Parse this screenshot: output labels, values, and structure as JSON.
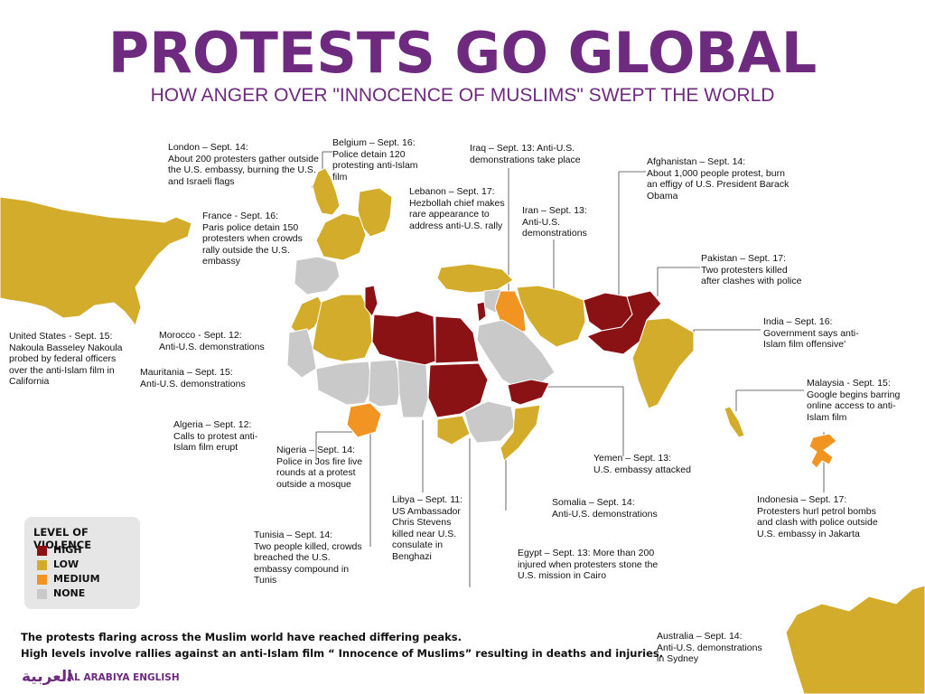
{
  "header": {
    "title": "PROTESTS GO GLOBAL",
    "subtitle": "HOW ANGER OVER \"INNOCENCE OF MUSLIMS\" SWEPT THE WORLD"
  },
  "colors": {
    "high": "#8b1214",
    "low": "#d4ac2b",
    "medium": "#f29422",
    "none": "#c9c9c9",
    "title": "#6e2a7e"
  },
  "legend": {
    "title": "LEVEL OF VIOLENCE",
    "items": [
      {
        "label": "HIGH",
        "color": "#8b1214"
      },
      {
        "label": "LOW",
        "color": "#d4ac2b"
      },
      {
        "label": "MEDIUM",
        "color": "#f29422"
      },
      {
        "label": "NONE",
        "color": "#c9c9c9"
      }
    ]
  },
  "regions": [
    {
      "name": "United States",
      "level": "low"
    },
    {
      "name": "United Kingdom",
      "level": "low"
    },
    {
      "name": "Belgium",
      "level": "low"
    },
    {
      "name": "France",
      "level": "low"
    },
    {
      "name": "Spain",
      "level": "none"
    },
    {
      "name": "Morocco",
      "level": "low"
    },
    {
      "name": "Algeria",
      "level": "low"
    },
    {
      "name": "Tunisia",
      "level": "high"
    },
    {
      "name": "Libya",
      "level": "high"
    },
    {
      "name": "Egypt",
      "level": "high"
    },
    {
      "name": "Sudan",
      "level": "high"
    },
    {
      "name": "Mauritania",
      "level": "none"
    },
    {
      "name": "Mali",
      "level": "none"
    },
    {
      "name": "Niger",
      "level": "none"
    },
    {
      "name": "Chad",
      "level": "none"
    },
    {
      "name": "Nigeria",
      "level": "medium"
    },
    {
      "name": "Turkey",
      "level": "low"
    },
    {
      "name": "Syria",
      "level": "none"
    },
    {
      "name": "Lebanon",
      "level": "high"
    },
    {
      "name": "Iraq",
      "level": "medium"
    },
    {
      "name": "Saudi Arabia",
      "level": "none"
    },
    {
      "name": "Yemen",
      "level": "high"
    },
    {
      "name": "Iran",
      "level": "low"
    },
    {
      "name": "Afghanistan",
      "level": "high"
    },
    {
      "name": "Pakistan",
      "level": "high"
    },
    {
      "name": "India",
      "level": "low"
    },
    {
      "name": "Ethiopia",
      "level": "none"
    },
    {
      "name": "South Sudan",
      "level": "low"
    },
    {
      "name": "Somalia",
      "level": "low"
    },
    {
      "name": "Malaysia",
      "level": "low"
    },
    {
      "name": "Indonesia",
      "level": "medium"
    },
    {
      "name": "Australia",
      "level": "low"
    }
  ],
  "annotations": [
    {
      "id": "london",
      "head": "London – Sept. 14:",
      "body": "About 200 protesters gather outside the U.S. embassy, burning the U.S. and Israeli flags"
    },
    {
      "id": "belgium",
      "head": "Belgium – Sept. 16:",
      "body": "Police detain 120 protesting anti-Islam film"
    },
    {
      "id": "iraq",
      "head": "Iraq – Sept. 13: Anti-U.S.",
      "body": "demonstrations take place"
    },
    {
      "id": "afghanistan",
      "head": "Afghanistan – Sept. 14:",
      "body": "About 1,000 people protest, burn an effigy of U.S. President Barack Obama"
    },
    {
      "id": "lebanon",
      "head": "Lebanon – Sept. 17:",
      "body": "Hezbollah chief makes rare appearance to address anti-U.S. rally"
    },
    {
      "id": "iran",
      "head": "Iran – Sept. 13:",
      "body": "Anti-U.S. demonstrations"
    },
    {
      "id": "france",
      "head": "France - Sept. 16:",
      "body": "Paris police detain 150 protesters when crowds rally outside the U.S. embassy"
    },
    {
      "id": "pakistan",
      "head": "Pakistan – Sept. 17:",
      "body": "Two protesters killed after clashes with police"
    },
    {
      "id": "usa",
      "head": "United States - Sept. 15:",
      "body": "Nakoula Basseley Nakoula probed by federal officers over the anti-Islam film in California"
    },
    {
      "id": "morocco",
      "head": "Morocco - Sept. 12:",
      "body": "Anti-U.S. demonstrations"
    },
    {
      "id": "india",
      "head": "India – Sept. 16:",
      "body": "Government says anti-Islam film offensive'"
    },
    {
      "id": "mauritania",
      "head": "Mauritania – Sept. 15:",
      "body": "Anti-U.S. demonstrations"
    },
    {
      "id": "malaysia",
      "head": "Malaysia - Sept. 15:",
      "body": "Google begins barring online access to anti-Islam film"
    },
    {
      "id": "algeria",
      "head": "Algeria – Sept. 12:",
      "body": "Calls to protest anti-Islam film erupt"
    },
    {
      "id": "nigeria",
      "head": "Nigeria – Sept. 14:",
      "body": "Police in Jos fire live rounds at a protest outside a mosque"
    },
    {
      "id": "yemen",
      "head": "Yemen – Sept. 13:",
      "body": "U.S. embassy attacked"
    },
    {
      "id": "libya",
      "head": "Libya – Sept. 11:",
      "body": "US Ambassador Chris Stevens killed near U.S. consulate in Benghazi"
    },
    {
      "id": "somalia",
      "head": "Somalia – Sept. 14:",
      "body": "Anti-U.S. demonstrations"
    },
    {
      "id": "indonesia",
      "head": "Indonesia – Sept. 17:",
      "body": "Protesters hurl petrol bombs and clash with police outside U.S. embassy in Jakarta"
    },
    {
      "id": "tunisia",
      "head": "Tunisia – Sept. 14:",
      "body": "Two people killed, crowds breached the U.S. embassy compound in Tunis"
    },
    {
      "id": "egypt",
      "head": "Egypt – Sept. 13: More than 200",
      "body": "injured when protesters stone the U.S. mission in Cairo"
    },
    {
      "id": "australia",
      "head": "Australia – Sept. 14:",
      "body": "Anti-U.S. demonstrations in Sydney"
    }
  ],
  "footer": {
    "line1": "The protests flaring across the Muslim world have reached differing peaks.",
    "line2": "High levels involve rallies against an anti-Islam film “ Innocence of Muslims” resulting in deaths and injuries."
  },
  "brand": {
    "arabic": "العربية",
    "english": "AL ARABIYA ENGLISH"
  }
}
